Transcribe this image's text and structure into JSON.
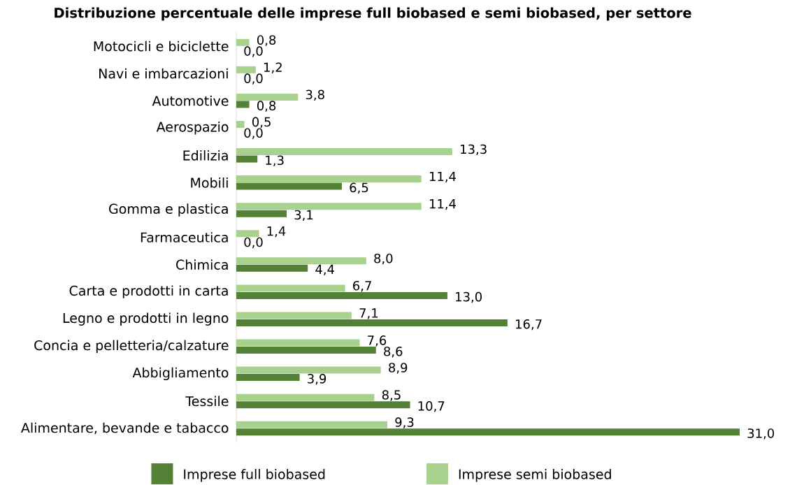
{
  "chart_data": {
    "type": "bar",
    "orientation": "horizontal",
    "title": "Distribuzione percentuale delle imprese full biobased e semi biobased, per settore",
    "categories": [
      "Motocicli e biciclette",
      "Navi e imbarcazioni",
      "Automotive",
      "Aerospazio",
      "Edilizia",
      "Mobili",
      "Gomma e plastica",
      "Farmaceutica",
      "Chimica",
      "Carta e prodotti in carta",
      "Legno e prodotti in legno",
      "Concia e pelletteria/calzature",
      "Abbigliamento",
      "Tessile",
      "Alimentare, bevande e tabacco"
    ],
    "series": [
      {
        "name": "Imprese full biobased",
        "color": "#538135",
        "values": [
          0.0,
          0.0,
          0.8,
          0.0,
          1.3,
          6.5,
          3.1,
          0.0,
          4.4,
          13.0,
          16.7,
          8.6,
          3.9,
          10.7,
          31.0
        ],
        "value_labels": [
          "0,0",
          "0,0",
          "0,8",
          "0,0",
          "1,3",
          "6,5",
          "3,1",
          "0,0",
          "4,4",
          "13,0",
          "16,7",
          "8,6",
          "3,9",
          "10,7",
          "31,0"
        ]
      },
      {
        "name": "Imprese semi biobased",
        "color": "#a9d18e",
        "values": [
          0.8,
          1.2,
          3.8,
          0.5,
          13.3,
          11.4,
          11.4,
          1.4,
          8.0,
          6.7,
          7.1,
          7.6,
          8.9,
          8.5,
          9.3
        ],
        "value_labels": [
          "0,8",
          "1,2",
          "3,8",
          "0,5",
          "13,3",
          "11,4",
          "11,4",
          "1,4",
          "8,0",
          "6,7",
          "7,1",
          "7,6",
          "8,9",
          "8,5",
          "9,3"
        ]
      }
    ],
    "legend": "bottom"
  }
}
